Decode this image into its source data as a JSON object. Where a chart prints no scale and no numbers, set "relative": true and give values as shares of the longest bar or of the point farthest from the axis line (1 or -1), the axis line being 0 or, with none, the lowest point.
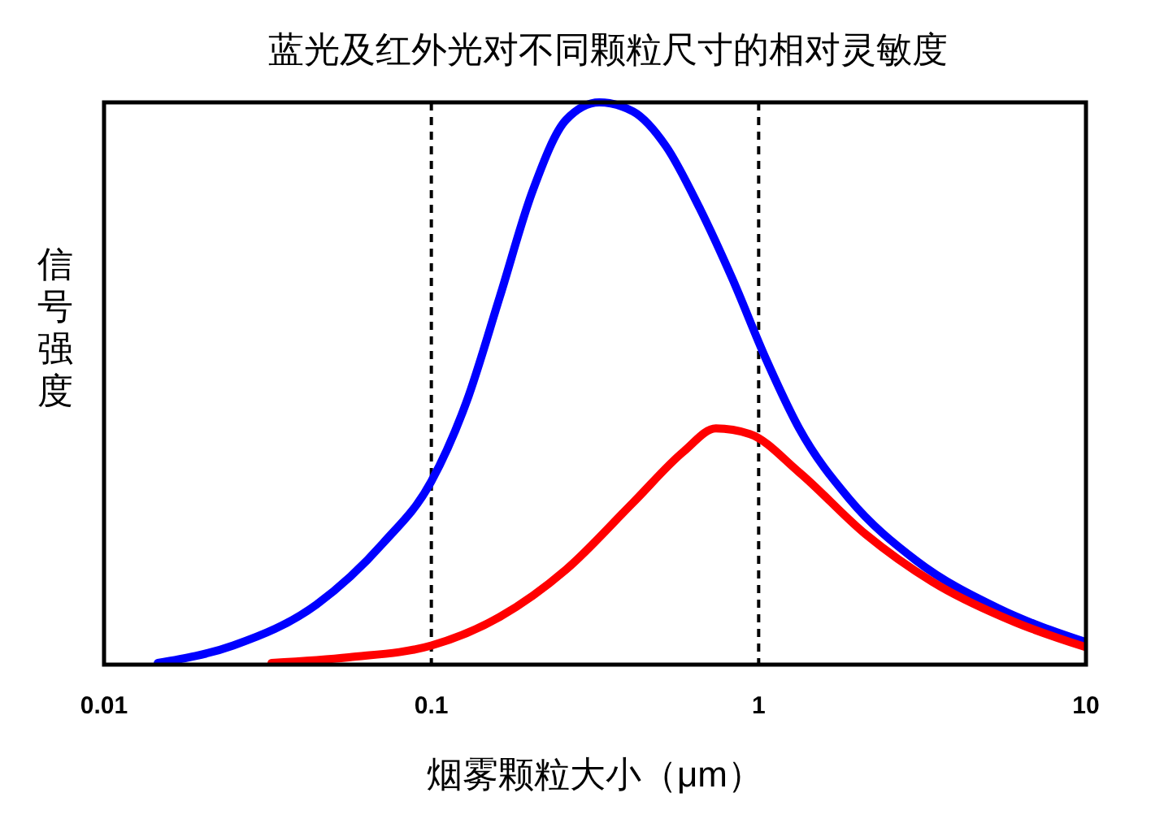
{
  "chart_data": {
    "type": "line",
    "title": "蓝光及红外光对不同颗粒尺寸的相对灵敏度",
    "xlabel": "烟雾颗粒大小（μm）",
    "ylabel": "信号强度",
    "log": "x",
    "relative": true,
    "xlim": [
      0.01,
      10
    ],
    "xticks": [
      0.01,
      0.1,
      1,
      10
    ],
    "grid": false,
    "line_style": "solid",
    "ref_lines": [
      {
        "axis": "x",
        "value": 0.1,
        "color": "#000000",
        "line_style": "dashed"
      },
      {
        "axis": "x",
        "value": 1,
        "color": "#000000",
        "line_style": "dashed"
      }
    ],
    "series": [
      {
        "color": "#0000ff",
        "x": [
          0.0146,
          0.0248,
          0.0446,
          0.0712,
          0.1,
          0.128,
          0.162,
          0.204,
          0.258,
          0.326,
          0.413,
          0.521,
          0.66,
          0.83,
          1.05,
          1.33,
          1.89,
          3.03,
          5.4,
          10
        ],
        "values": [
          0.003,
          0.034,
          0.107,
          0.216,
          0.326,
          0.467,
          0.655,
          0.843,
          0.969,
          1,
          0.984,
          0.922,
          0.812,
          0.687,
          0.545,
          0.42,
          0.295,
          0.185,
          0.1,
          0.04
        ]
      },
      {
        "color": "#ff0000",
        "x": [
          0.0325,
          0.056,
          0.1,
          0.162,
          0.258,
          0.413,
          0.59,
          0.74,
          0.94,
          1.33,
          2.12,
          3.4,
          6.1,
          10
        ],
        "values": [
          0.003,
          0.013,
          0.034,
          0.085,
          0.169,
          0.288,
          0.379,
          0.42,
          0.41,
          0.342,
          0.232,
          0.147,
          0.075,
          0.031
        ]
      }
    ]
  }
}
